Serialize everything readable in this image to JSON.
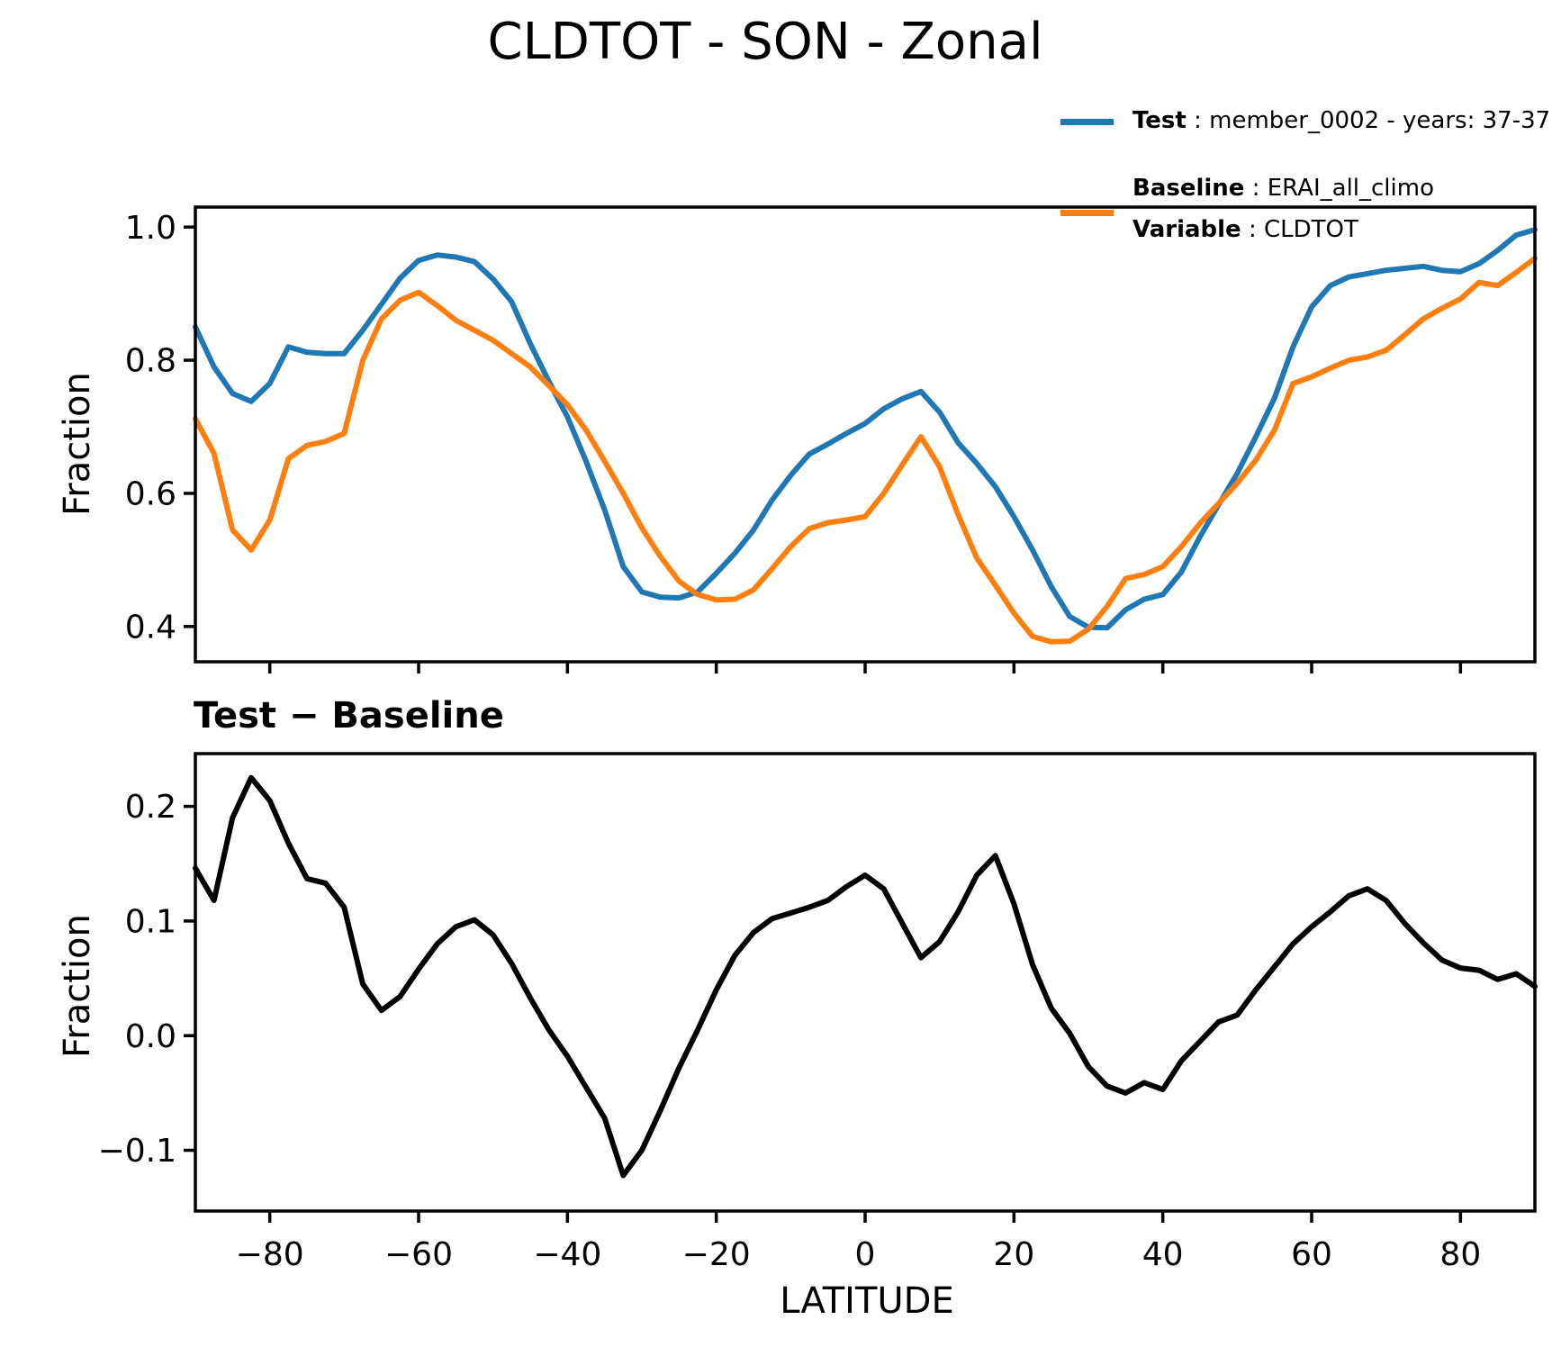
{
  "title": "CLDTOT - SON - Zonal",
  "legend": {
    "test": {
      "label_bold": "Test",
      "label_rest": " : member_0002 - years: 37-37",
      "color": "#1f77b4"
    },
    "baseline": {
      "label_bold": "Baseline",
      "label_rest": " : ERAI_all_climo",
      "color": "#ff7f0e"
    },
    "variable": {
      "label_bold": "Variable",
      "label_rest": " : CLDTOT"
    }
  },
  "top_panel": {
    "ylabel": "Fraction"
  },
  "bottom_panel": {
    "subtitle": "Test − Baseline",
    "ylabel": "Fraction",
    "xlabel": "LATITUDE"
  },
  "colors": {
    "test": "#1f77b4",
    "baseline": "#ff7f0e",
    "difference": "#000000",
    "spine": "#000000"
  },
  "chart_data": [
    {
      "type": "line",
      "panel": "top",
      "title": "CLDTOT - SON - Zonal",
      "ylabel": "Fraction",
      "xlabel": "",
      "grid": false,
      "legend_position": "upper-right above axes",
      "xlim": [
        -90,
        90
      ],
      "ylim": [
        0.347,
        1.03
      ],
      "xticks": [
        -80,
        -60,
        -40,
        -20,
        0,
        20,
        40,
        60,
        80
      ],
      "xtick_labels": [],
      "yticks": [
        0.4,
        0.6,
        0.8,
        1.0
      ],
      "ytick_labels": [
        "0.4",
        "0.6",
        "0.8",
        "1.0"
      ],
      "x": [
        -90,
        -87.5,
        -85,
        -82.5,
        -80,
        -77.5,
        -75,
        -72.5,
        -70,
        -67.5,
        -65,
        -62.5,
        -60,
        -57.5,
        -55,
        -52.5,
        -50,
        -47.5,
        -45,
        -42.5,
        -40,
        -37.5,
        -35,
        -32.5,
        -30,
        -27.5,
        -25,
        -22.5,
        -20,
        -17.5,
        -15,
        -12.5,
        -10,
        -7.5,
        -5,
        -2.5,
        0,
        2.5,
        5,
        7.5,
        10,
        12.5,
        15,
        17.5,
        20,
        22.5,
        25,
        27.5,
        30,
        32.5,
        35,
        37.5,
        40,
        42.5,
        45,
        47.5,
        50,
        52.5,
        55,
        57.5,
        60,
        62.5,
        65,
        67.5,
        70,
        72.5,
        75,
        77.5,
        80,
        82.5,
        85,
        87.5,
        90
      ],
      "series": [
        {
          "name": "Test : member_0002 - years: 37-37",
          "color": "#1f77b4",
          "values": [
            0.85,
            0.79,
            0.75,
            0.738,
            0.765,
            0.82,
            0.812,
            0.81,
            0.81,
            0.845,
            0.884,
            0.923,
            0.95,
            0.958,
            0.955,
            0.948,
            0.922,
            0.888,
            0.825,
            0.768,
            0.715,
            0.648,
            0.575,
            0.49,
            0.452,
            0.444,
            0.443,
            0.452,
            0.48,
            0.51,
            0.545,
            0.59,
            0.627,
            0.659,
            0.674,
            0.69,
            0.705,
            0.727,
            0.742,
            0.753,
            0.722,
            0.676,
            0.645,
            0.61,
            0.565,
            0.515,
            0.46,
            0.415,
            0.399,
            0.398,
            0.425,
            0.441,
            0.448,
            0.482,
            0.535,
            0.583,
            0.63,
            0.685,
            0.743,
            0.82,
            0.88,
            0.912,
            0.925,
            0.93,
            0.935,
            0.938,
            0.941,
            0.935,
            0.933,
            0.945,
            0.965,
            0.988,
            0.996
          ]
        },
        {
          "name": "Baseline : ERAI_all_climo (Variable : CLDTOT)",
          "color": "#ff7f0e",
          "values": [
            0.712,
            0.66,
            0.545,
            0.515,
            0.56,
            0.652,
            0.672,
            0.678,
            0.69,
            0.8,
            0.862,
            0.89,
            0.902,
            0.882,
            0.86,
            0.845,
            0.83,
            0.81,
            0.79,
            0.762,
            0.733,
            0.695,
            0.648,
            0.6,
            0.548,
            0.505,
            0.468,
            0.448,
            0.44,
            0.441,
            0.455,
            0.487,
            0.52,
            0.547,
            0.556,
            0.56,
            0.565,
            0.6,
            0.643,
            0.685,
            0.64,
            0.568,
            0.503,
            0.462,
            0.42,
            0.385,
            0.377,
            0.378,
            0.396,
            0.43,
            0.472,
            0.478,
            0.49,
            0.52,
            0.555,
            0.585,
            0.615,
            0.65,
            0.695,
            0.765,
            0.775,
            0.788,
            0.8,
            0.805,
            0.815,
            0.838,
            0.862,
            0.878,
            0.892,
            0.917,
            0.912,
            0.932,
            0.953
          ]
        }
      ]
    },
    {
      "type": "line",
      "panel": "bottom",
      "title": "Test − Baseline",
      "ylabel": "Fraction",
      "xlabel": "LATITUDE",
      "grid": false,
      "xlim": [
        -90,
        90
      ],
      "ylim": [
        -0.153,
        0.246
      ],
      "xticks": [
        -80,
        -60,
        -40,
        -20,
        0,
        20,
        40,
        60,
        80
      ],
      "xtick_labels": [
        "−80",
        "−60",
        "−40",
        "−20",
        "0",
        "20",
        "40",
        "60",
        "80"
      ],
      "yticks": [
        -0.1,
        0.0,
        0.1,
        0.2
      ],
      "ytick_labels": [
        "−0.1",
        "0.0",
        "0.1",
        "0.2"
      ],
      "x": [
        -90,
        -87.5,
        -85,
        -82.5,
        -80,
        -77.5,
        -75,
        -72.5,
        -70,
        -67.5,
        -65,
        -62.5,
        -60,
        -57.5,
        -55,
        -52.5,
        -50,
        -47.5,
        -45,
        -42.5,
        -40,
        -37.5,
        -35,
        -32.5,
        -30,
        -27.5,
        -25,
        -22.5,
        -20,
        -17.5,
        -15,
        -12.5,
        -10,
        -7.5,
        -5,
        -2.5,
        0,
        2.5,
        5,
        7.5,
        10,
        12.5,
        15,
        17.5,
        20,
        22.5,
        25,
        27.5,
        30,
        32.5,
        35,
        37.5,
        40,
        42.5,
        45,
        47.5,
        50,
        52.5,
        55,
        57.5,
        60,
        62.5,
        65,
        67.5,
        70,
        72.5,
        75,
        77.5,
        80,
        82.5,
        85,
        87.5,
        90
      ],
      "series": [
        {
          "name": "Test − Baseline",
          "color": "#000000",
          "values": [
            0.146,
            0.118,
            0.19,
            0.225,
            0.205,
            0.168,
            0.137,
            0.133,
            0.112,
            0.045,
            0.022,
            0.034,
            0.058,
            0.08,
            0.095,
            0.101,
            0.088,
            0.063,
            0.033,
            0.005,
            -0.018,
            -0.045,
            -0.072,
            -0.122,
            -0.1,
            -0.065,
            -0.028,
            0.005,
            0.04,
            0.07,
            0.09,
            0.102,
            0.107,
            0.112,
            0.118,
            0.13,
            0.14,
            0.128,
            0.098,
            0.068,
            0.082,
            0.108,
            0.14,
            0.157,
            0.115,
            0.062,
            0.024,
            0.002,
            -0.027,
            -0.044,
            -0.05,
            -0.041,
            -0.047,
            -0.022,
            -0.005,
            0.012,
            0.018,
            0.04,
            0.06,
            0.08,
            0.095,
            0.108,
            0.122,
            0.128,
            0.118,
            0.098,
            0.081,
            0.066,
            0.059,
            0.057,
            0.049,
            0.054,
            0.043
          ]
        }
      ]
    }
  ]
}
